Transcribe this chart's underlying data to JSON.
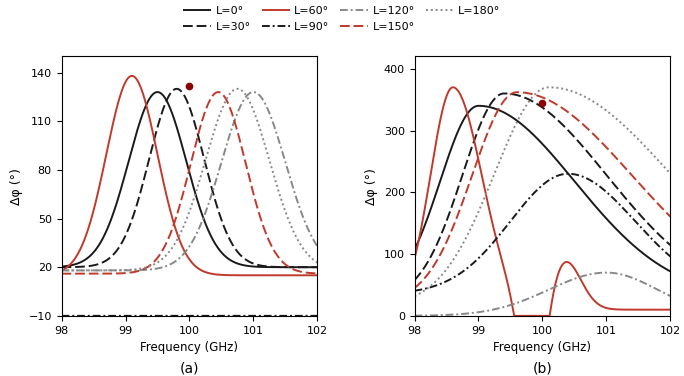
{
  "freq_range": [
    98,
    102
  ],
  "legend_labels": [
    "L=0°",
    "L=30°",
    "L=60°",
    "L=90°",
    "L=120°",
    "L=150°",
    "L=180°"
  ],
  "line_colors": [
    "#1a1a1a",
    "#1a1a1a",
    "#c0392b",
    "#1a1a1a",
    "#888888",
    "#c0392b",
    "#888888"
  ],
  "xlabel": "Frequency (GHz)",
  "ylabel_a": "Δφ (°)",
  "ylabel_b": "Δφ (°)",
  "label_a": "(a)",
  "label_b": "(b)",
  "ylim_a": [
    -10,
    150
  ],
  "ylim_b": [
    0,
    420
  ],
  "yticks_a": [
    -10,
    20,
    50,
    80,
    110,
    140
  ],
  "yticks_b": [
    0,
    100,
    200,
    300,
    400
  ],
  "xticks": [
    98,
    99,
    100,
    101,
    102
  ],
  "marker_xa": 100.0,
  "marker_ya": 132,
  "marker_xb": 100.0,
  "marker_yb": 345,
  "background_color": "#ffffff"
}
